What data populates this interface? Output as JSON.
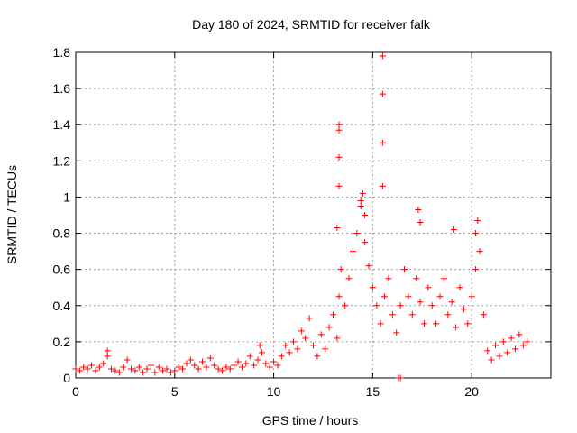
{
  "chart_data": {
    "type": "scatter",
    "title": "Day 180 of 2024, SRMTID for receiver falk",
    "xlabel": "GPS time / hours",
    "ylabel": "SRMTID / TECUs",
    "xlim": [
      0,
      24
    ],
    "ylim": [
      0,
      1.8
    ],
    "xticks": [
      "0",
      "5",
      "10",
      "15",
      "20"
    ],
    "yticks": [
      "0",
      "0.2",
      "0.4",
      "0.6",
      "0.8",
      "1",
      "1.2",
      "1.4",
      "1.6",
      "1.8"
    ],
    "grid": true,
    "marker": "+",
    "marker_color": "#ff0000",
    "series": [
      {
        "name": "SRMTID",
        "points": [
          [
            0.0,
            0.05
          ],
          [
            0.2,
            0.04
          ],
          [
            0.4,
            0.06
          ],
          [
            0.6,
            0.05
          ],
          [
            0.8,
            0.07
          ],
          [
            1.0,
            0.04
          ],
          [
            1.2,
            0.06
          ],
          [
            1.4,
            0.08
          ],
          [
            1.6,
            0.12
          ],
          [
            1.8,
            0.05
          ],
          [
            2.0,
            0.04
          ],
          [
            2.2,
            0.03
          ],
          [
            2.4,
            0.06
          ],
          [
            2.6,
            0.1
          ],
          [
            2.8,
            0.05
          ],
          [
            3.0,
            0.04
          ],
          [
            3.2,
            0.06
          ],
          [
            3.4,
            0.03
          ],
          [
            3.6,
            0.05
          ],
          [
            3.8,
            0.07
          ],
          [
            4.0,
            0.03
          ],
          [
            4.2,
            0.06
          ],
          [
            4.4,
            0.04
          ],
          [
            4.6,
            0.05
          ],
          [
            4.8,
            0.03
          ],
          [
            5.0,
            0.04
          ],
          [
            5.2,
            0.06
          ],
          [
            5.4,
            0.05
          ],
          [
            5.6,
            0.08
          ],
          [
            5.8,
            0.1
          ],
          [
            6.0,
            0.07
          ],
          [
            6.2,
            0.05
          ],
          [
            6.4,
            0.09
          ],
          [
            6.6,
            0.06
          ],
          [
            6.8,
            0.11
          ],
          [
            7.0,
            0.07
          ],
          [
            7.2,
            0.05
          ],
          [
            7.4,
            0.04
          ],
          [
            7.6,
            0.06
          ],
          [
            7.8,
            0.05
          ],
          [
            8.0,
            0.07
          ],
          [
            8.2,
            0.09
          ],
          [
            8.4,
            0.06
          ],
          [
            8.6,
            0.08
          ],
          [
            8.8,
            0.12
          ],
          [
            9.0,
            0.07
          ],
          [
            9.2,
            0.1
          ],
          [
            9.4,
            0.14
          ],
          [
            9.6,
            0.08
          ],
          [
            9.8,
            0.06
          ],
          [
            10.0,
            0.09
          ],
          [
            10.2,
            0.07
          ],
          [
            10.4,
            0.12
          ],
          [
            10.6,
            0.18
          ],
          [
            10.8,
            0.14
          ],
          [
            11.0,
            0.2
          ],
          [
            11.2,
            0.16
          ],
          [
            11.4,
            0.26
          ],
          [
            11.6,
            0.22
          ],
          [
            11.8,
            0.33
          ],
          [
            12.0,
            0.18
          ],
          [
            12.2,
            0.12
          ],
          [
            12.4,
            0.24
          ],
          [
            12.6,
            0.16
          ],
          [
            12.8,
            0.28
          ],
          [
            13.0,
            0.35
          ],
          [
            13.2,
            0.22
          ],
          [
            13.3,
            0.45
          ],
          [
            13.4,
            0.6
          ],
          [
            13.6,
            0.4
          ],
          [
            13.8,
            0.55
          ],
          [
            14.0,
            0.7
          ],
          [
            14.2,
            0.8
          ],
          [
            14.4,
            0.95
          ],
          [
            14.6,
            0.75
          ],
          [
            14.8,
            0.62
          ],
          [
            15.0,
            0.5
          ],
          [
            15.2,
            0.4
          ],
          [
            15.4,
            0.3
          ],
          [
            15.6,
            0.45
          ],
          [
            15.8,
            0.55
          ],
          [
            16.0,
            0.35
          ],
          [
            16.2,
            0.25
          ],
          [
            16.4,
            0.4
          ],
          [
            16.6,
            0.6
          ],
          [
            16.8,
            0.45
          ],
          [
            17.0,
            0.35
          ],
          [
            17.2,
            0.55
          ],
          [
            17.4,
            0.42
          ],
          [
            17.6,
            0.3
          ],
          [
            17.8,
            0.5
          ],
          [
            18.0,
            0.4
          ],
          [
            18.2,
            0.3
          ],
          [
            18.4,
            0.45
          ],
          [
            18.6,
            0.55
          ],
          [
            18.8,
            0.35
          ],
          [
            19.0,
            0.42
          ],
          [
            19.2,
            0.28
          ],
          [
            19.4,
            0.5
          ],
          [
            19.6,
            0.38
          ],
          [
            19.8,
            0.3
          ],
          [
            20.0,
            0.45
          ],
          [
            20.2,
            0.6
          ],
          [
            20.4,
            0.7
          ],
          [
            20.6,
            0.35
          ],
          [
            20.8,
            0.15
          ],
          [
            21.0,
            0.1
          ],
          [
            21.2,
            0.18
          ],
          [
            21.4,
            0.12
          ],
          [
            21.6,
            0.2
          ],
          [
            21.8,
            0.14
          ],
          [
            22.0,
            0.22
          ],
          [
            22.2,
            0.16
          ],
          [
            22.4,
            0.24
          ],
          [
            22.6,
            0.18
          ],
          [
            22.8,
            0.2
          ],
          [
            13.3,
            1.4
          ],
          [
            13.3,
            1.37
          ],
          [
            13.3,
            1.22
          ],
          [
            13.3,
            1.06
          ],
          [
            13.2,
            0.83
          ],
          [
            14.5,
            1.02
          ],
          [
            14.4,
            0.98
          ],
          [
            14.6,
            0.9
          ],
          [
            15.5,
            1.78
          ],
          [
            15.5,
            1.57
          ],
          [
            15.5,
            1.3
          ],
          [
            15.5,
            1.06
          ],
          [
            16.3,
            0.0
          ],
          [
            16.4,
            0.0
          ],
          [
            17.3,
            0.93
          ],
          [
            17.4,
            0.86
          ],
          [
            19.1,
            0.82
          ],
          [
            20.3,
            0.87
          ],
          [
            20.2,
            0.8
          ],
          [
            9.3,
            0.18
          ],
          [
            1.6,
            0.15
          ]
        ]
      }
    ]
  }
}
